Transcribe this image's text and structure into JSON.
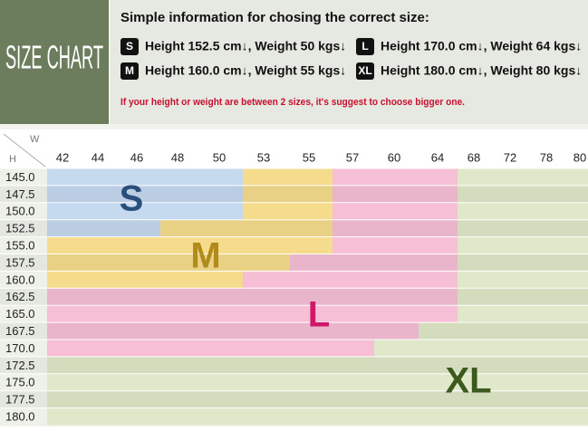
{
  "header": {
    "logo": "SIZE CHART",
    "title": "Simple information for chosing the correct size:",
    "sizes": [
      {
        "code": "S",
        "text": "Height 152.5 cm↓, Weight 50 kgs↓"
      },
      {
        "code": "L",
        "text": "Height 170.0 cm↓, Weight 64 kgs↓"
      },
      {
        "code": "M",
        "text": "Height 160.0 cm↓, Weight 55 kgs↓"
      },
      {
        "code": "XL",
        "text": "Height 180.0 cm↓, Weight 80 kgs↓"
      }
    ],
    "note": "If your height or weight are between 2 sizes, it's suggest to choose bigger one."
  },
  "table": {
    "corner_w": "W",
    "corner_h": "H",
    "weights": [
      "42",
      "44",
      "46",
      "48",
      "50",
      "53",
      "55",
      "57",
      "60",
      "64",
      "68",
      "72",
      "78",
      "80"
    ],
    "heights": [
      "145.0",
      "147.5",
      "150.0",
      "152.5",
      "155.0",
      "157.5",
      "160.0",
      "162.5",
      "165.0",
      "167.5",
      "170.0",
      "172.5",
      "175.0",
      "177.5",
      "180.0"
    ],
    "regions": [
      "S",
      "M",
      "L",
      "XL"
    ]
  }
}
